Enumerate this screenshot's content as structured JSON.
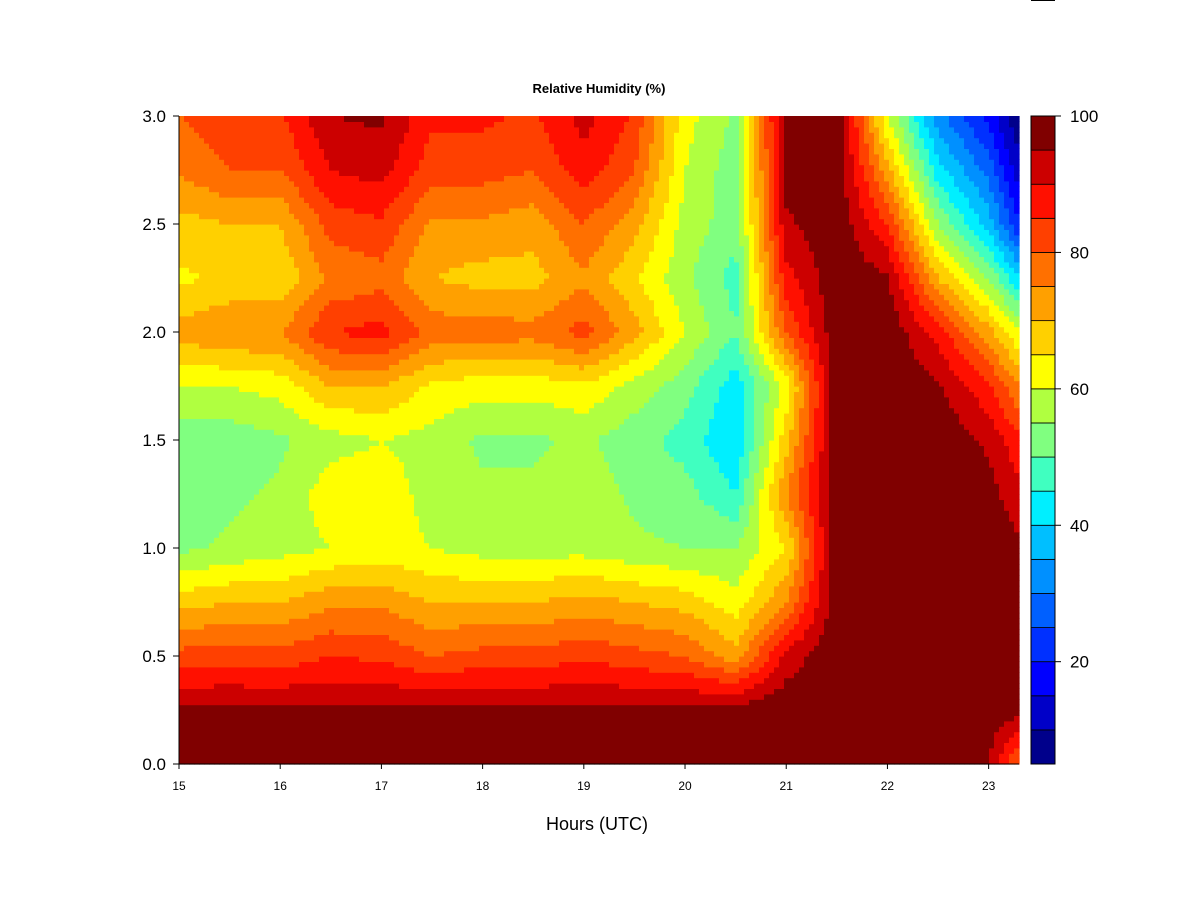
{
  "chart_data": {
    "type": "heatmap",
    "title": "Relative Humidity (%)",
    "xlabel": "Hours (UTC)",
    "ylabel": "",
    "xlim": [
      15,
      23.3
    ],
    "ylim": [
      0,
      3.0
    ],
    "x_ticks": [
      15,
      16,
      17,
      18,
      19,
      20,
      21,
      22,
      23
    ],
    "x_tick_labels": [
      "15",
      "16",
      "17",
      "18",
      "19",
      "20",
      "21",
      "22",
      "23"
    ],
    "y_ticks": [
      0,
      0.5,
      1.0,
      1.5,
      2.0,
      2.5,
      3.0
    ],
    "y_tick_labels": [
      "0.0",
      "0.5",
      "1.0",
      "1.5",
      "2.0",
      "2.5",
      "3.0"
    ],
    "z_range": [
      5,
      100
    ],
    "colorbar": {
      "levels": [
        5,
        10,
        15,
        20,
        25,
        30,
        35,
        40,
        45,
        50,
        55,
        60,
        65,
        70,
        75,
        80,
        85,
        90,
        95,
        100
      ],
      "colors": [
        "#00008b",
        "#0000c8",
        "#0000ff",
        "#0030ff",
        "#0060ff",
        "#0090ff",
        "#00bfff",
        "#00efff",
        "#40ffc0",
        "#80ff80",
        "#b0ff40",
        "#ffff00",
        "#ffd000",
        "#ffa000",
        "#ff7000",
        "#ff4000",
        "#ff1000",
        "#cc0000",
        "#800000"
      ],
      "ticks": [
        20,
        40,
        60,
        80,
        100
      ],
      "tick_labels": [
        "20",
        "40",
        "60",
        "80",
        "100"
      ]
    },
    "x_hours": [
      15.0,
      15.5,
      16.0,
      16.5,
      17.0,
      17.5,
      18.0,
      18.5,
      19.0,
      19.5,
      20.0,
      20.5,
      21.0,
      21.5,
      22.0,
      22.5,
      23.0,
      23.3
    ],
    "y_heights": [
      0.0,
      0.25,
      0.5,
      0.75,
      1.0,
      1.25,
      1.5,
      1.75,
      2.0,
      2.25,
      2.5,
      2.75,
      3.0
    ],
    "z_values": [
      [
        98,
        98,
        98,
        98,
        98,
        98,
        98,
        98,
        98,
        98,
        98,
        98,
        98,
        98,
        98,
        98,
        95,
        78
      ],
      [
        96,
        96,
        96,
        96,
        96,
        96,
        96,
        96,
        96,
        96,
        96,
        98,
        99,
        99,
        99,
        99,
        99,
        97
      ],
      [
        82,
        83,
        82,
        85,
        84,
        80,
        82,
        82,
        84,
        82,
        80,
        72,
        92,
        99,
        99,
        99,
        98,
        99
      ],
      [
        68,
        70,
        70,
        74,
        74,
        70,
        70,
        70,
        72,
        70,
        68,
        62,
        75,
        99,
        99,
        99,
        98,
        97
      ],
      [
        54,
        56,
        58,
        60,
        62,
        60,
        58,
        58,
        58,
        56,
        55,
        55,
        65,
        99,
        99,
        99,
        98,
        96
      ],
      [
        52,
        54,
        56,
        63,
        63,
        58,
        56,
        56,
        58,
        54,
        52,
        45,
        75,
        99,
        99,
        99,
        97,
        92
      ],
      [
        52,
        52,
        54,
        58,
        60,
        58,
        54,
        54,
        56,
        52,
        48,
        40,
        68,
        99,
        99,
        99,
        94,
        86
      ],
      [
        60,
        60,
        62,
        70,
        70,
        64,
        62,
        62,
        64,
        58,
        52,
        42,
        62,
        99,
        99,
        96,
        86,
        75
      ],
      [
        72,
        75,
        75,
        85,
        87,
        78,
        78,
        77,
        82,
        72,
        60,
        50,
        80,
        99,
        99,
        88,
        72,
        60
      ],
      [
        64,
        66,
        66,
        76,
        78,
        70,
        68,
        68,
        74,
        66,
        56,
        48,
        88,
        99,
        96,
        70,
        55,
        40
      ],
      [
        68,
        70,
        70,
        82,
        84,
        74,
        74,
        72,
        80,
        72,
        58,
        52,
        94,
        99,
        85,
        55,
        38,
        20
      ],
      [
        76,
        80,
        80,
        90,
        92,
        82,
        82,
        80,
        88,
        80,
        60,
        52,
        97,
        99,
        72,
        42,
        28,
        12
      ],
      [
        80,
        84,
        84,
        95,
        96,
        86,
        86,
        84,
        92,
        84,
        62,
        54,
        98,
        99,
        60,
        32,
        18,
        5
      ]
    ]
  }
}
